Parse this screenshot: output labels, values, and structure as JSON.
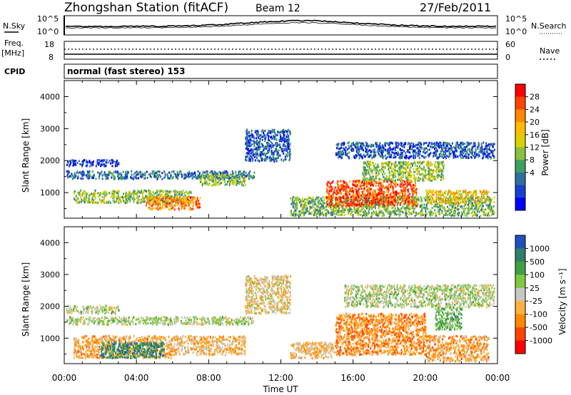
{
  "header": {
    "station": "Zhongshan Station (fitACF)",
    "beam": "Beam 12",
    "date": "27/Feb/2011"
  },
  "panels": {
    "nsky": {
      "label": "N.Sky",
      "top_tick": "10^5",
      "bottom_tick": "10^0"
    },
    "nsearch": {
      "label": "N.Search",
      "top_tick": "10^5",
      "bottom_tick": "10^0"
    },
    "freq": {
      "label_line1": "Freq.",
      "label_line2": "[MHz]",
      "top_tick": "18",
      "bottom_tick": "8"
    },
    "nave": {
      "label": "Nave",
      "top_tick": "60",
      "bottom_tick": "0"
    },
    "cpid": {
      "label": "CPID",
      "value": "normal (fast stereo) 153"
    }
  },
  "colorbars": {
    "power": {
      "label": "Power [dB]",
      "ticks": [
        "28",
        "24",
        "20",
        "16",
        "12",
        "8",
        "4"
      ],
      "colors": [
        "#ff0000",
        "#ff4400",
        "#ff8800",
        "#ffbb00",
        "#ddd000",
        "#88c040",
        "#40a060",
        "#3070a0",
        "#1840d0",
        "#0000ff"
      ]
    },
    "velocity": {
      "label": "Velocity [m s⁻¹]",
      "ticks": [
        "1000",
        "500",
        "100",
        "25",
        "-25",
        "-100",
        "-500",
        "-1000"
      ],
      "colors": [
        "#2050c0",
        "#2f7f6a",
        "#40a040",
        "#7fc840",
        "#c8c8c0",
        "#ffb040",
        "#ff8800",
        "#ff4400",
        "#ff0000"
      ]
    }
  },
  "chart_data": [
    {
      "type": "heatmap",
      "title": "Power",
      "xlabel": "Time UT",
      "ylabel": "Slant Range [km]",
      "xticks": [
        "00:00",
        "04:00",
        "08:00",
        "12:00",
        "16:00",
        "20:00",
        "00:00"
      ],
      "xlim_hours": [
        0,
        24
      ],
      "ylim": [
        200,
        4500
      ],
      "yticks": [
        1000,
        2000,
        3000,
        4000
      ],
      "regions": [
        {
          "t0": 0.1,
          "t1": 10.5,
          "r0": 1450,
          "r1": 1700,
          "level": 0.25
        },
        {
          "t0": 0.1,
          "t1": 3.0,
          "r0": 1850,
          "r1": 2050,
          "level": 0.15
        },
        {
          "t0": 0.5,
          "t1": 7.0,
          "r0": 700,
          "r1": 1100,
          "level": 0.45
        },
        {
          "t0": 4.5,
          "t1": 7.5,
          "r0": 500,
          "r1": 900,
          "level": 0.75
        },
        {
          "t0": 7.5,
          "t1": 10.0,
          "r0": 1250,
          "r1": 1600,
          "level": 0.45
        },
        {
          "t0": 10.0,
          "t1": 12.5,
          "r0": 2000,
          "r1": 3000,
          "level": 0.2
        },
        {
          "t0": 12.5,
          "t1": 23.8,
          "r0": 300,
          "r1": 900,
          "level": 0.4
        },
        {
          "t0": 14.5,
          "t1": 19.5,
          "r0": 600,
          "r1": 1400,
          "level": 0.85
        },
        {
          "t0": 16.5,
          "t1": 21.0,
          "r0": 1400,
          "r1": 2000,
          "level": 0.45
        },
        {
          "t0": 15.0,
          "t1": 23.8,
          "r0": 2100,
          "r1": 2600,
          "level": 0.2
        },
        {
          "t0": 20.0,
          "t1": 23.5,
          "r0": 700,
          "r1": 1100,
          "level": 0.6
        }
      ]
    },
    {
      "type": "heatmap",
      "title": "Velocity",
      "xlabel": "Time UT",
      "ylabel": "Slant Range [km]",
      "xticks": [
        "00:00",
        "04:00",
        "08:00",
        "12:00",
        "16:00",
        "20:00",
        "00:00"
      ],
      "xlim_hours": [
        0,
        24
      ],
      "ylim": [
        200,
        4500
      ],
      "yticks": [
        1000,
        2000,
        3000,
        4000
      ],
      "regions": [
        {
          "t0": 0.1,
          "t1": 10.5,
          "r0": 1450,
          "r1": 1700,
          "level": 0.45
        },
        {
          "t0": 0.1,
          "t1": 3.0,
          "r0": 1800,
          "r1": 2050,
          "level": 0.45
        },
        {
          "t0": 0.5,
          "t1": 6.0,
          "r0": 400,
          "r1": 1100,
          "level": 0.65
        },
        {
          "t0": 2.0,
          "t1": 5.5,
          "r0": 400,
          "r1": 900,
          "level": 0.2
        },
        {
          "t0": 6.0,
          "t1": 10.0,
          "r0": 500,
          "r1": 1100,
          "level": 0.6
        },
        {
          "t0": 10.0,
          "t1": 12.5,
          "r0": 1800,
          "r1": 3000,
          "level": 0.55
        },
        {
          "t0": 12.5,
          "t1": 15.0,
          "r0": 400,
          "r1": 900,
          "level": 0.6
        },
        {
          "t0": 15.0,
          "t1": 20.0,
          "r0": 500,
          "r1": 1800,
          "level": 0.7
        },
        {
          "t0": 15.5,
          "t1": 23.8,
          "r0": 2000,
          "r1": 2700,
          "level": 0.45
        },
        {
          "t0": 20.0,
          "t1": 23.5,
          "r0": 300,
          "r1": 1100,
          "level": 0.65
        },
        {
          "t0": 20.5,
          "t1": 22.0,
          "r0": 1300,
          "r1": 2000,
          "level": 0.35
        }
      ]
    }
  ]
}
